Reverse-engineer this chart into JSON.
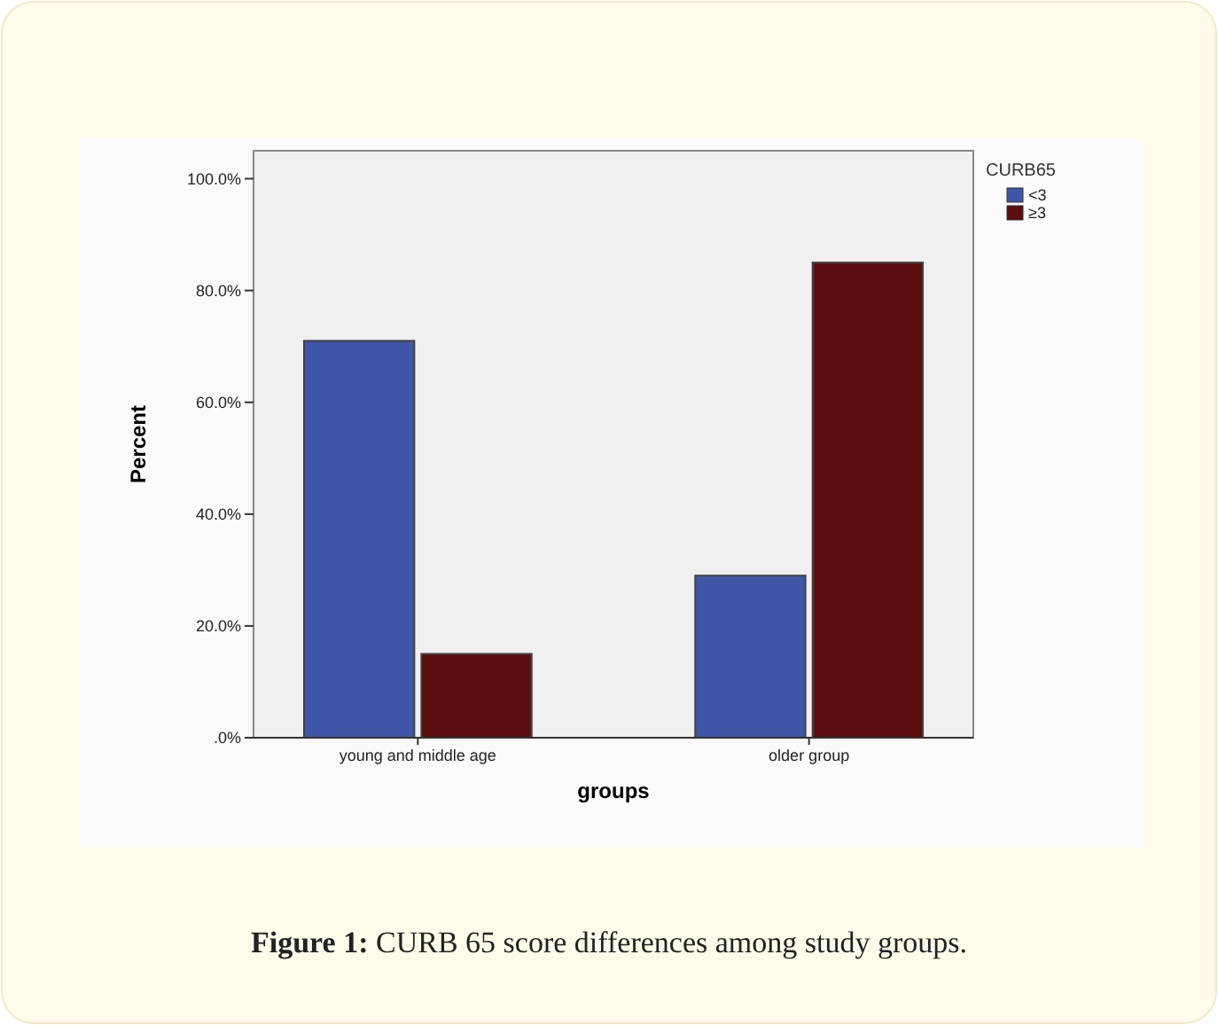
{
  "chart_data": {
    "type": "bar",
    "xlabel": "groups",
    "ylabel": "Percent",
    "legend_title": "CURB65",
    "categories": [
      "young and middle age",
      "older group"
    ],
    "series": [
      {
        "name": "<3",
        "color": "#3f56a8",
        "values": [
          71,
          29
        ]
      },
      {
        "name": "≥3",
        "color": "#5c0d0d",
        "values": [
          15,
          85
        ]
      }
    ],
    "ylim": [
      0,
      105
    ],
    "yticks": [
      {
        "value": 0,
        "label": ".0%"
      },
      {
        "value": 20,
        "label": "20.0%"
      },
      {
        "value": 40,
        "label": "40.0%"
      },
      {
        "value": 60,
        "label": "60.0%"
      },
      {
        "value": 80,
        "label": "80.0%"
      },
      {
        "value": 100,
        "label": "100.0%"
      }
    ],
    "grid": false,
    "legend": "top right",
    "annotations": [
      "Figure 1: CURB 65 score differences among study groups."
    ]
  }
}
